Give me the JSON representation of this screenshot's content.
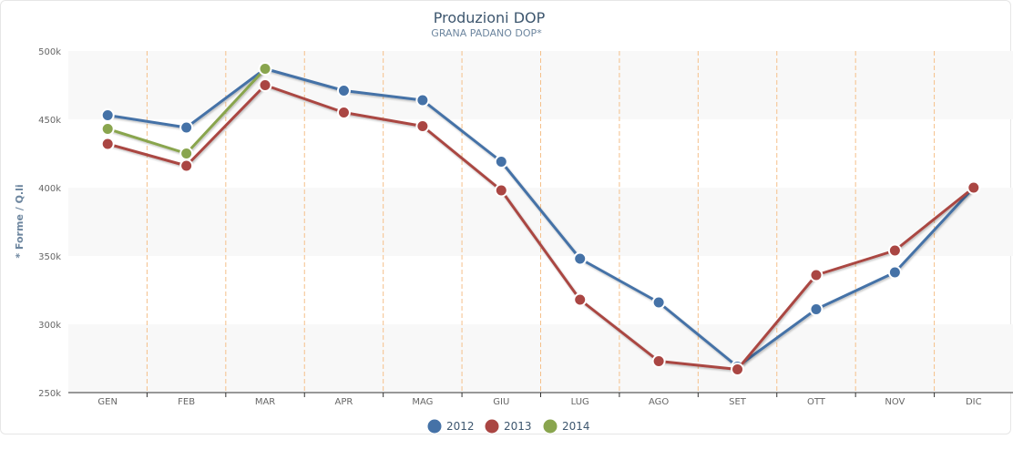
{
  "chart_data": {
    "type": "line",
    "title": "Produzioni DOP",
    "subtitle": "GRANA PADANO DOP*",
    "xlabel": "",
    "ylabel": "* Forme / Q.li",
    "categories": [
      "GEN",
      "FEB",
      "MAR",
      "APR",
      "MAG",
      "GIU",
      "LUG",
      "AGO",
      "SET",
      "OTT",
      "NOV",
      "DIC"
    ],
    "ylim": [
      250000,
      500000
    ],
    "yticks": [
      250000,
      300000,
      350000,
      400000,
      450000,
      500000
    ],
    "ytick_labels": [
      "250k",
      "300k",
      "350k",
      "400k",
      "450k",
      "500k"
    ],
    "grid": "alternating horizontal bands, dashed vertical lines",
    "legend": "bottom-center",
    "series": [
      {
        "name": "2012",
        "color": "#4572a7",
        "values": [
          453000,
          444000,
          487000,
          471000,
          464000,
          419000,
          348000,
          316000,
          269000,
          311000,
          338000,
          400000
        ]
      },
      {
        "name": "2013",
        "color": "#aa4643",
        "values": [
          432000,
          416000,
          475000,
          455000,
          445000,
          398000,
          318000,
          273000,
          267000,
          336000,
          354000,
          400000
        ]
      },
      {
        "name": "2014",
        "color": "#89a54e",
        "values": [
          443000,
          425000,
          487000,
          null,
          null,
          null,
          null,
          null,
          null,
          null,
          null,
          null
        ]
      }
    ]
  }
}
